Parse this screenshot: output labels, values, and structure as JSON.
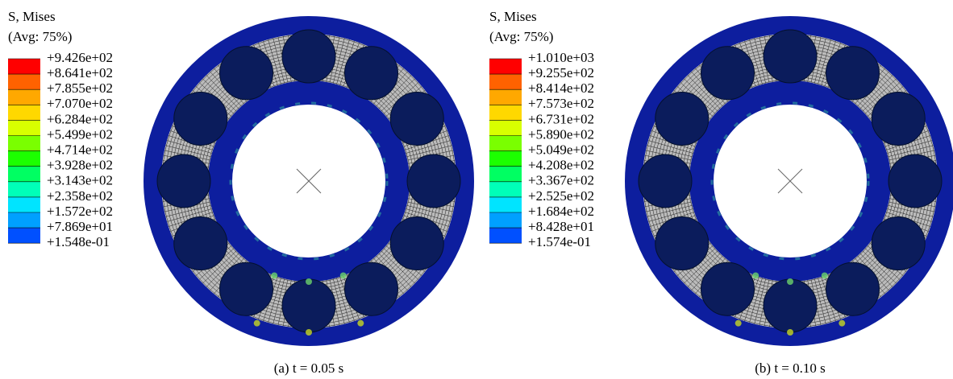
{
  "panels": [
    {
      "legend": {
        "title": "S, Mises",
        "subtitle": "(Avg: 75%)",
        "labels": [
          "+9.426e+02",
          "+8.641e+02",
          "+7.855e+02",
          "+7.070e+02",
          "+6.284e+02",
          "+5.499e+02",
          "+4.714e+02",
          "+3.928e+02",
          "+3.143e+02",
          "+2.358e+02",
          "+1.572e+02",
          "+7.869e+01",
          "+1.548e-01"
        ]
      },
      "caption": "(a) t = 0.05 s"
    },
    {
      "legend": {
        "title": "S, Mises",
        "subtitle": "(Avg: 75%)",
        "labels": [
          "+1.010e+03",
          "+9.255e+02",
          "+8.414e+02",
          "+7.573e+02",
          "+6.731e+02",
          "+5.890e+02",
          "+5.049e+02",
          "+4.208e+02",
          "+3.367e+02",
          "+2.525e+02",
          "+1.684e+02",
          "+8.428e+01",
          "+1.574e-01"
        ]
      },
      "caption": "(b) t = 0.10 s"
    }
  ]
}
